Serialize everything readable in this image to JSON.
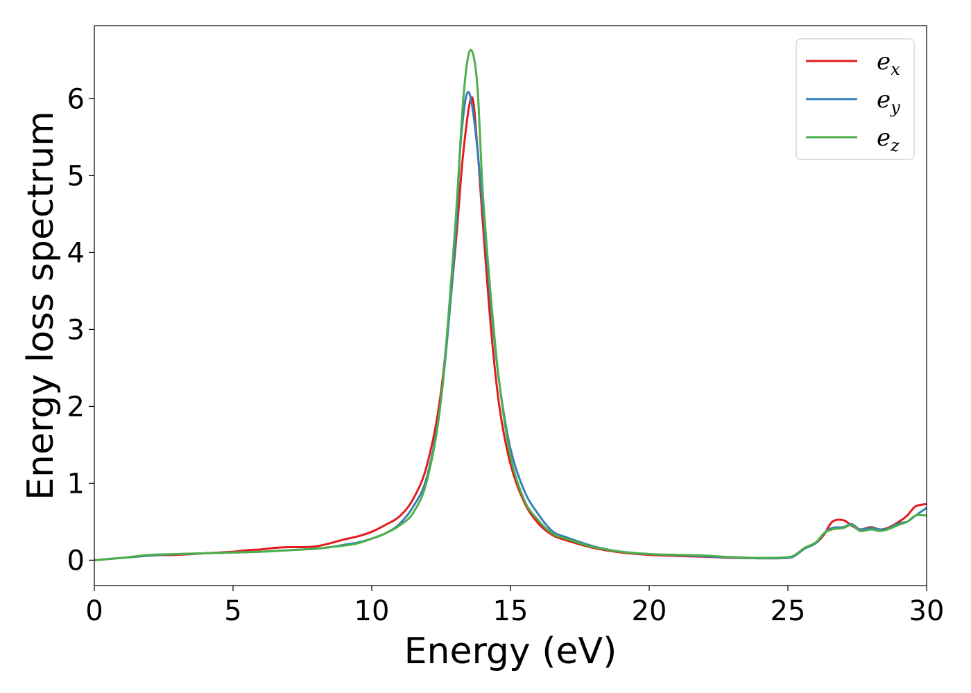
{
  "chart_data": {
    "type": "line",
    "title": "",
    "xlabel": "Energy (eV)",
    "ylabel": "Energy loss spectrum",
    "xlim": [
      0,
      30
    ],
    "ylim": [
      -0.33,
      6.95
    ],
    "xticks": [
      0,
      5,
      10,
      15,
      20,
      25,
      30
    ],
    "xtick_labels": [
      "0",
      "5",
      "10",
      "15",
      "20",
      "25",
      "30"
    ],
    "yticks": [
      0,
      1,
      2,
      3,
      4,
      5,
      6
    ],
    "ytick_labels": [
      "0",
      "1",
      "2",
      "3",
      "4",
      "5",
      "6"
    ],
    "grid": false,
    "legend_position": "top-right",
    "series": [
      {
        "name": "e_x",
        "legend_base": "e",
        "legend_sub": "x",
        "color": "#e41a1c",
        "x": [
          0,
          1,
          2,
          3,
          4,
          5,
          5.5,
          6,
          6.5,
          7,
          7.5,
          8,
          8.5,
          9,
          9.5,
          10,
          10.5,
          11,
          11.5,
          12,
          12.5,
          13,
          13.3,
          13.6,
          13.8,
          14,
          14.3,
          14.6,
          15,
          15.5,
          16,
          16.5,
          17,
          18,
          19,
          20,
          21,
          22,
          23,
          24,
          25,
          25.3,
          25.6,
          26,
          26.3,
          26.6,
          27,
          27.3,
          27.6,
          28,
          28.3,
          28.6,
          29,
          29.3,
          29.6,
          30
        ],
        "y": [
          0,
          0.03,
          0.06,
          0.07,
          0.09,
          0.11,
          0.13,
          0.14,
          0.16,
          0.17,
          0.17,
          0.18,
          0.22,
          0.27,
          0.31,
          0.37,
          0.46,
          0.57,
          0.8,
          1.25,
          2.2,
          4.0,
          5.3,
          6.02,
          5.4,
          4.4,
          3.0,
          2.0,
          1.25,
          0.75,
          0.48,
          0.33,
          0.26,
          0.16,
          0.1,
          0.07,
          0.055,
          0.045,
          0.03,
          0.025,
          0.03,
          0.07,
          0.15,
          0.22,
          0.33,
          0.5,
          0.52,
          0.45,
          0.4,
          0.43,
          0.4,
          0.42,
          0.5,
          0.58,
          0.7,
          0.73
        ]
      },
      {
        "name": "e_y",
        "legend_base": "e",
        "legend_sub": "y",
        "color": "#377eb8",
        "x": [
          0,
          1,
          2,
          3,
          4,
          5,
          6,
          7,
          8,
          8.5,
          9,
          9.5,
          10,
          10.5,
          11,
          11.5,
          12,
          12.5,
          13,
          13.2,
          13.45,
          13.7,
          14,
          14.3,
          14.6,
          15,
          15.5,
          16,
          16.5,
          17,
          18,
          19,
          20,
          21,
          22,
          23,
          24,
          25,
          25.3,
          25.6,
          26,
          26.3,
          26.6,
          27,
          27.3,
          27.6,
          28,
          28.3,
          28.6,
          29,
          29.3,
          29.6,
          30
        ],
        "y": [
          0,
          0.03,
          0.06,
          0.08,
          0.09,
          0.1,
          0.11,
          0.13,
          0.15,
          0.17,
          0.2,
          0.23,
          0.28,
          0.35,
          0.47,
          0.7,
          1.1,
          2.1,
          4.1,
          5.4,
          6.08,
          5.7,
          4.6,
          3.3,
          2.3,
          1.45,
          0.9,
          0.6,
          0.38,
          0.3,
          0.18,
          0.11,
          0.08,
          0.065,
          0.05,
          0.035,
          0.025,
          0.03,
          0.07,
          0.15,
          0.22,
          0.35,
          0.42,
          0.43,
          0.47,
          0.4,
          0.42,
          0.4,
          0.41,
          0.48,
          0.5,
          0.58,
          0.68
        ]
      },
      {
        "name": "e_z",
        "legend_base": "e",
        "legend_sub": "z",
        "color": "#4daf4a",
        "x": [
          0,
          1,
          2,
          3,
          4,
          5,
          6,
          7,
          8,
          8.5,
          9,
          9.5,
          10,
          10.5,
          11,
          11.5,
          12,
          12.5,
          13,
          13.3,
          13.55,
          13.8,
          14,
          14.3,
          14.6,
          15,
          15.5,
          16,
          16.5,
          17,
          18,
          19,
          20,
          21,
          22,
          23,
          24,
          25,
          25.3,
          25.6,
          26,
          26.3,
          26.6,
          27,
          27.3,
          27.6,
          28,
          28.3,
          28.6,
          29,
          29.3,
          29.6,
          30
        ],
        "y": [
          0,
          0.03,
          0.07,
          0.08,
          0.09,
          0.1,
          0.11,
          0.13,
          0.15,
          0.17,
          0.19,
          0.22,
          0.28,
          0.35,
          0.45,
          0.62,
          1.05,
          2.1,
          4.3,
          6.0,
          6.63,
          6.2,
          4.8,
          3.4,
          2.3,
          1.35,
          0.78,
          0.52,
          0.35,
          0.28,
          0.17,
          0.11,
          0.08,
          0.07,
          0.06,
          0.04,
          0.03,
          0.04,
          0.08,
          0.16,
          0.23,
          0.35,
          0.4,
          0.42,
          0.46,
          0.38,
          0.4,
          0.38,
          0.4,
          0.46,
          0.5,
          0.58,
          0.58
        ]
      }
    ]
  }
}
